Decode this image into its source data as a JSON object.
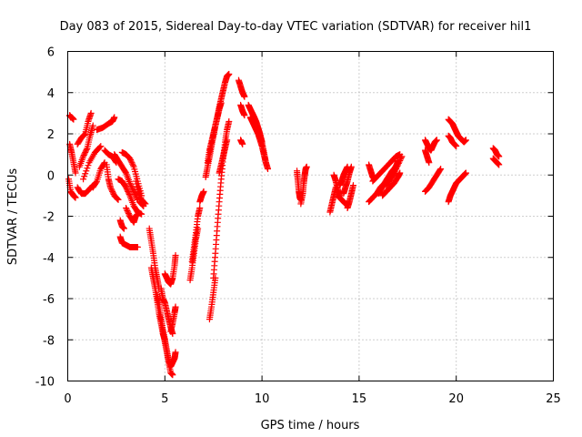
{
  "chart_data": {
    "type": "scatter",
    "title": "Day 083 of 2015, Sidereal Day-to-day VTEC variation (SDTVAR) for receiver hil1",
    "xlabel": "GPS time / hours",
    "ylabel": "SDTVAR / TECUs",
    "xlim": [
      0,
      25
    ],
    "ylim": [
      -10,
      6
    ],
    "x_ticks": [
      0,
      5,
      10,
      15,
      20,
      25
    ],
    "y_ticks": [
      -10,
      -8,
      -6,
      -4,
      -2,
      0,
      2,
      4,
      6
    ],
    "grid": true,
    "legend": "none",
    "marker": "plus",
    "series_color": "#ff0000",
    "tracks": [
      {
        "x": [
          0.1,
          0.15,
          0.2,
          0.3
        ],
        "y": [
          2.9,
          2.8,
          2.8,
          2.7
        ]
      },
      {
        "x": [
          0.1,
          0.2,
          0.3,
          0.4
        ],
        "y": [
          1.5,
          1.1,
          0.6,
          0.1
        ]
      },
      {
        "x": [
          0.05,
          0.15,
          0.3,
          0.4
        ],
        "y": [
          -0.2,
          -0.8,
          -1.0,
          -1.1
        ]
      },
      {
        "x": [
          0.5,
          0.7,
          0.9,
          1.05,
          1.2
        ],
        "y": [
          1.5,
          1.8,
          2.0,
          2.6,
          3.0
        ]
      },
      {
        "x": [
          0.6,
          0.8,
          1.0,
          1.15,
          1.3
        ],
        "y": [
          0.4,
          0.9,
          1.3,
          1.9,
          2.4
        ]
      },
      {
        "x": [
          0.5,
          0.7,
          0.9,
          1.1,
          1.3
        ],
        "y": [
          -0.6,
          -0.9,
          -0.9,
          -0.7,
          -0.5
        ]
      },
      {
        "x": [
          0.8,
          1.1,
          1.4,
          1.7
        ],
        "y": [
          -0.2,
          0.6,
          1.1,
          1.4
        ]
      },
      {
        "x": [
          1.3,
          1.5,
          1.7,
          1.9
        ],
        "y": [
          -0.6,
          -0.3,
          0.3,
          0.6
        ]
      },
      {
        "x": [
          1.5,
          1.8,
          2.1,
          2.3,
          2.4
        ],
        "y": [
          2.2,
          2.3,
          2.5,
          2.6,
          2.8
        ]
      },
      {
        "x": [
          1.9,
          2.1,
          2.3,
          2.5
        ],
        "y": [
          1.2,
          1.0,
          0.9,
          0.6
        ]
      },
      {
        "x": [
          2.0,
          2.1,
          2.2,
          2.4,
          2.6
        ],
        "y": [
          0.5,
          -0.2,
          -0.6,
          -1.0,
          -1.2
        ]
      },
      {
        "x": [
          2.4,
          2.6,
          2.8,
          3.0,
          3.2,
          3.4,
          3.6
        ],
        "y": [
          1.0,
          0.7,
          0.4,
          0.1,
          -0.4,
          -0.8,
          -1.2
        ]
      },
      {
        "x": [
          2.6,
          2.8,
          3.0,
          3.2,
          3.4,
          3.6,
          3.8
        ],
        "y": [
          -0.2,
          -0.3,
          -0.6,
          -1.0,
          -1.5,
          -1.8,
          -1.9
        ]
      },
      {
        "x": [
          2.7,
          2.8,
          2.9
        ],
        "y": [
          -2.2,
          -2.5,
          -2.6
        ]
      },
      {
        "x": [
          2.7,
          2.8,
          3.0,
          3.2,
          3.4,
          3.5,
          3.6
        ],
        "y": [
          -3.0,
          -3.3,
          -3.4,
          -3.5,
          -3.5,
          -3.5,
          -3.5
        ]
      },
      {
        "x": [
          2.8,
          3.0,
          3.2,
          3.4,
          3.6,
          3.8
        ],
        "y": [
          1.1,
          1.0,
          0.8,
          0.4,
          -0.3,
          -1.0
        ]
      },
      {
        "x": [
          3.0,
          3.2,
          3.4,
          3.5,
          3.6
        ],
        "y": [
          -1.6,
          -2.0,
          -2.3,
          -2.0,
          -1.9
        ]
      },
      {
        "x": [
          3.5,
          3.7,
          3.9
        ],
        "y": [
          -0.3,
          -1.1,
          -1.5
        ]
      },
      {
        "x": [
          3.6,
          3.8,
          4.0
        ],
        "y": [
          -0.6,
          -1.2,
          -1.4
        ]
      },
      {
        "x": [
          3.7,
          3.8,
          3.9
        ],
        "y": [
          -1.3,
          -1.4,
          -1.5
        ]
      },
      {
        "x": [
          4.2,
          4.3,
          4.4,
          4.5,
          4.6,
          4.7
        ],
        "y": [
          -2.6,
          -3.2,
          -3.8,
          -4.5,
          -5.0,
          -5.5
        ]
      },
      {
        "x": [
          4.3,
          4.4,
          4.5,
          4.6,
          4.7,
          4.8,
          4.9,
          5.0
        ],
        "y": [
          -4.5,
          -5.0,
          -5.5,
          -6.1,
          -6.7,
          -7.2,
          -7.7,
          -8.0
        ]
      },
      {
        "x": [
          4.6,
          4.7,
          4.8,
          4.9,
          5.0,
          5.1,
          5.2,
          5.3
        ],
        "y": [
          -5.8,
          -6.3,
          -6.9,
          -7.5,
          -8.0,
          -8.5,
          -9.0,
          -9.2
        ]
      },
      {
        "x": [
          4.9,
          5.0,
          5.1,
          5.2,
          5.3,
          5.4
        ],
        "y": [
          -7.6,
          -8.1,
          -8.6,
          -9.1,
          -9.6,
          -9.7
        ]
      },
      {
        "x": [
          4.8,
          4.9,
          5.0,
          5.1,
          5.2,
          5.3,
          5.4
        ],
        "y": [
          -5.5,
          -6.0,
          -6.2,
          -6.6,
          -7.0,
          -7.4,
          -7.7
        ]
      },
      {
        "x": [
          5.0,
          5.1,
          5.2,
          5.3,
          5.4,
          5.5,
          5.55
        ],
        "y": [
          -4.8,
          -5.0,
          -5.2,
          -5.3,
          -5.0,
          -4.4,
          -3.9
        ]
      },
      {
        "x": [
          5.3,
          5.4,
          5.5,
          5.55
        ],
        "y": [
          -7.6,
          -7.2,
          -6.7,
          -6.4
        ]
      },
      {
        "x": [
          5.3,
          5.4,
          5.5,
          5.55
        ],
        "y": [
          -9.3,
          -9.1,
          -8.9,
          -8.6
        ]
      },
      {
        "x": [
          6.3,
          6.4,
          6.5,
          6.6,
          6.7
        ],
        "y": [
          -5.1,
          -4.5,
          -3.8,
          -3.1,
          -2.6
        ]
      },
      {
        "x": [
          6.4,
          6.5,
          6.6,
          6.7,
          6.8
        ],
        "y": [
          -4.2,
          -3.5,
          -2.8,
          -2.0,
          -1.6
        ]
      },
      {
        "x": [
          6.8,
          6.9,
          7.0
        ],
        "y": [
          -1.3,
          -1.0,
          -0.8
        ]
      },
      {
        "x": [
          7.1,
          7.2,
          7.3,
          7.4,
          7.5,
          7.6,
          7.7,
          7.8,
          7.9,
          8.0,
          8.1,
          8.2,
          8.3
        ],
        "y": [
          -0.1,
          0.4,
          0.9,
          1.4,
          1.9,
          2.4,
          2.8,
          3.3,
          3.7,
          4.1,
          4.5,
          4.8,
          4.9
        ]
      },
      {
        "x": [
          7.2,
          7.3,
          7.4,
          7.5,
          7.6,
          7.7,
          7.8,
          7.9
        ],
        "y": [
          0.6,
          1.2,
          1.6,
          2.0,
          2.4,
          2.8,
          3.2,
          3.5
        ]
      },
      {
        "x": [
          7.3,
          7.4,
          7.5,
          7.6
        ],
        "y": [
          -7.0,
          -6.4,
          -5.7,
          -5.0
        ]
      },
      {
        "x": [
          7.5,
          7.6,
          7.7,
          7.8,
          7.9,
          8.0,
          8.1,
          8.2,
          8.3
        ],
        "y": [
          -5.0,
          -3.8,
          -2.5,
          -1.3,
          -0.2,
          0.8,
          1.6,
          2.2,
          2.6
        ]
      },
      {
        "x": [
          7.8,
          7.9,
          8.0,
          8.1,
          8.2
        ],
        "y": [
          0.1,
          0.5,
          0.9,
          1.3,
          1.7
        ]
      },
      {
        "x": [
          8.8,
          8.9,
          9.0,
          9.1
        ],
        "y": [
          4.6,
          4.3,
          4.0,
          3.8
        ]
      },
      {
        "x": [
          8.9,
          9.0,
          9.1
        ],
        "y": [
          3.4,
          3.1,
          2.9
        ]
      },
      {
        "x": [
          8.9,
          9.0
        ],
        "y": [
          1.7,
          1.5
        ]
      },
      {
        "x": [
          9.3,
          9.4,
          9.5,
          9.6,
          9.7,
          9.8,
          9.9,
          10.0,
          10.1,
          10.2
        ],
        "y": [
          3.4,
          3.2,
          3.0,
          2.8,
          2.6,
          2.3,
          2.0,
          1.6,
          1.1,
          0.6
        ]
      },
      {
        "x": [
          9.4,
          9.5,
          9.6,
          9.7,
          9.8,
          9.9,
          10.0,
          10.1,
          10.2,
          10.3
        ],
        "y": [
          2.8,
          2.6,
          2.4,
          2.2,
          2.0,
          1.7,
          1.4,
          1.0,
          0.6,
          0.3
        ]
      },
      {
        "x": [
          9.5,
          9.6,
          9.7,
          9.8,
          9.9,
          10.0
        ],
        "y": [
          3.0,
          2.8,
          2.5,
          2.2,
          1.9,
          1.6
        ]
      },
      {
        "x": [
          11.8,
          11.85,
          11.9,
          11.95,
          12.0
        ],
        "y": [
          0.2,
          -0.3,
          -0.8,
          -1.1,
          -1.2
        ]
      },
      {
        "x": [
          12.0,
          12.1,
          12.15,
          12.2,
          12.25,
          12.3
        ],
        "y": [
          -1.4,
          -0.9,
          -0.4,
          0.0,
          0.3,
          0.4
        ]
      },
      {
        "x": [
          13.5,
          13.6,
          13.7,
          13.8
        ],
        "y": [
          -1.8,
          -1.4,
          -1.0,
          -0.6
        ]
      },
      {
        "x": [
          13.7,
          13.8,
          13.9,
          14.0
        ],
        "y": [
          0.0,
          -0.3,
          -0.7,
          -1.0
        ]
      },
      {
        "x": [
          13.9,
          14.0,
          14.1,
          14.2,
          14.3,
          14.4
        ],
        "y": [
          -1.0,
          -1.1,
          -1.2,
          -1.3,
          -1.4,
          -1.4
        ]
      },
      {
        "x": [
          14.0,
          14.1,
          14.2,
          14.3,
          14.4
        ],
        "y": [
          -0.5,
          -0.3,
          0.0,
          0.2,
          0.4
        ]
      },
      {
        "x": [
          14.2,
          14.3,
          14.4,
          14.5,
          14.6
        ],
        "y": [
          -0.9,
          -0.6,
          -0.3,
          0.1,
          0.4
        ]
      },
      {
        "x": [
          14.4,
          14.5,
          14.6,
          14.7
        ],
        "y": [
          -1.6,
          -1.3,
          -0.9,
          -0.5
        ]
      },
      {
        "x": [
          15.5,
          15.6,
          15.7,
          15.8
        ],
        "y": [
          0.5,
          0.2,
          -0.1,
          -0.2
        ]
      },
      {
        "x": [
          15.5,
          15.7,
          15.9,
          16.1,
          16.3,
          16.5,
          16.7,
          16.9
        ],
        "y": [
          -1.3,
          -1.1,
          -0.9,
          -0.6,
          -0.4,
          -0.1,
          0.2,
          0.4
        ]
      },
      {
        "x": [
          15.7,
          15.9,
          16.1,
          16.3,
          16.5,
          16.7,
          16.9,
          17.1
        ],
        "y": [
          -0.3,
          -0.1,
          0.1,
          0.3,
          0.5,
          0.7,
          0.9,
          1.0
        ]
      },
      {
        "x": [
          16.0,
          16.2,
          16.4,
          16.6,
          16.8,
          17.0
        ],
        "y": [
          -0.9,
          -0.6,
          -0.3,
          0.0,
          0.3,
          0.6
        ]
      },
      {
        "x": [
          16.2,
          16.4,
          16.6,
          16.8,
          17.0,
          17.1
        ],
        "y": [
          -1.0,
          -0.8,
          -0.6,
          -0.4,
          -0.1,
          0.1
        ]
      },
      {
        "x": [
          16.4,
          16.6,
          16.8,
          17.0,
          17.2
        ],
        "y": [
          -0.5,
          -0.2,
          0.1,
          0.5,
          0.9
        ]
      },
      {
        "x": [
          16.5,
          16.7,
          16.9,
          17.0
        ],
        "y": [
          -0.4,
          0.0,
          0.4,
          0.7
        ]
      },
      {
        "x": [
          18.4,
          18.5,
          18.6,
          18.7,
          18.8,
          18.9,
          19.0
        ],
        "y": [
          1.7,
          1.5,
          1.3,
          1.2,
          1.4,
          1.6,
          1.7
        ]
      },
      {
        "x": [
          18.4,
          18.5,
          18.6
        ],
        "y": [
          1.2,
          0.9,
          0.6
        ]
      },
      {
        "x": [
          18.4,
          18.6,
          18.8,
          19.0,
          19.2
        ],
        "y": [
          -0.8,
          -0.6,
          -0.3,
          0.0,
          0.3
        ]
      },
      {
        "x": [
          19.6,
          19.7,
          19.8,
          19.9,
          20.0,
          20.1,
          20.2,
          20.3,
          20.4,
          20.5
        ],
        "y": [
          2.7,
          2.6,
          2.5,
          2.3,
          2.1,
          1.9,
          1.8,
          1.7,
          1.6,
          1.7
        ]
      },
      {
        "x": [
          19.6,
          19.7,
          19.8,
          19.9,
          20.0
        ],
        "y": [
          1.9,
          1.8,
          1.6,
          1.5,
          1.4
        ]
      },
      {
        "x": [
          19.6,
          19.7,
          19.8,
          19.9,
          20.0,
          20.1,
          20.2,
          20.3,
          20.4,
          20.5
        ],
        "y": [
          -1.3,
          -1.0,
          -0.8,
          -0.6,
          -0.4,
          -0.3,
          -0.2,
          -0.1,
          0.0,
          0.1
        ]
      },
      {
        "x": [
          21.9,
          22.0,
          22.1,
          22.2
        ],
        "y": [
          1.3,
          1.2,
          1.0,
          0.9
        ]
      },
      {
        "x": [
          21.9,
          22.0,
          22.1,
          22.2
        ],
        "y": [
          0.8,
          0.7,
          0.6,
          0.5
        ]
      }
    ]
  }
}
